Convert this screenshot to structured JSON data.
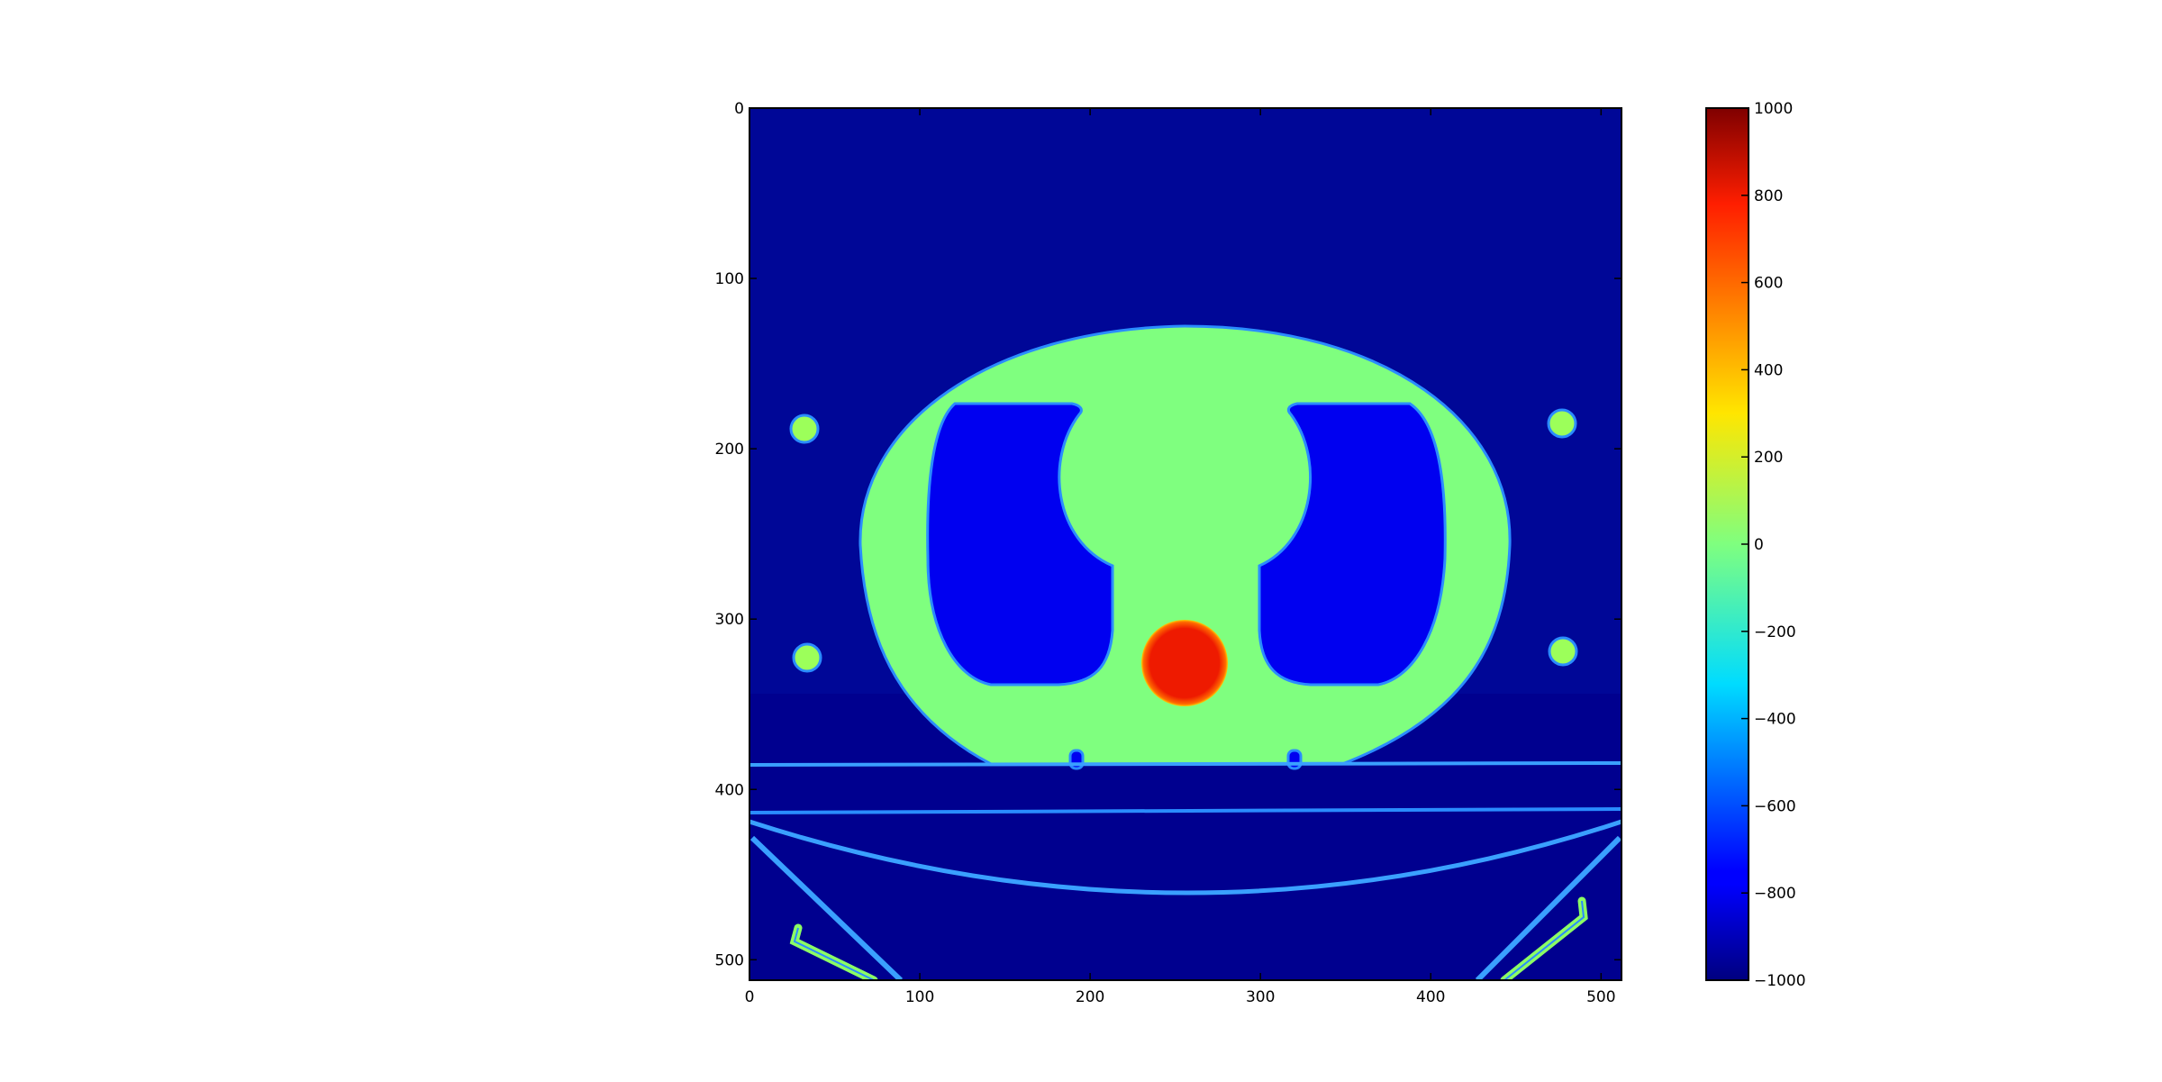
{
  "figure": {
    "image_axes": {
      "x_ticks": [
        "0",
        "100",
        "200",
        "300",
        "400",
        "500"
      ],
      "y_ticks": [
        "0",
        "100",
        "200",
        "300",
        "400",
        "500"
      ],
      "x_range": [
        0,
        512
      ],
      "y_range": [
        0,
        512
      ],
      "background_color": "#00008f"
    },
    "colorbar": {
      "ticks": [
        "1000",
        "800",
        "600",
        "400",
        "200",
        "0",
        "−200",
        "−400",
        "−600",
        "−800",
        "−1000"
      ],
      "range": [
        -1000,
        1000
      ],
      "colormap": "jet"
    },
    "colors": {
      "tissue": "#7fff7f",
      "lung": "#0000f0",
      "hot_insert": "#ee1a00",
      "air": "#00008f",
      "edge": "#2a8cff"
    }
  }
}
